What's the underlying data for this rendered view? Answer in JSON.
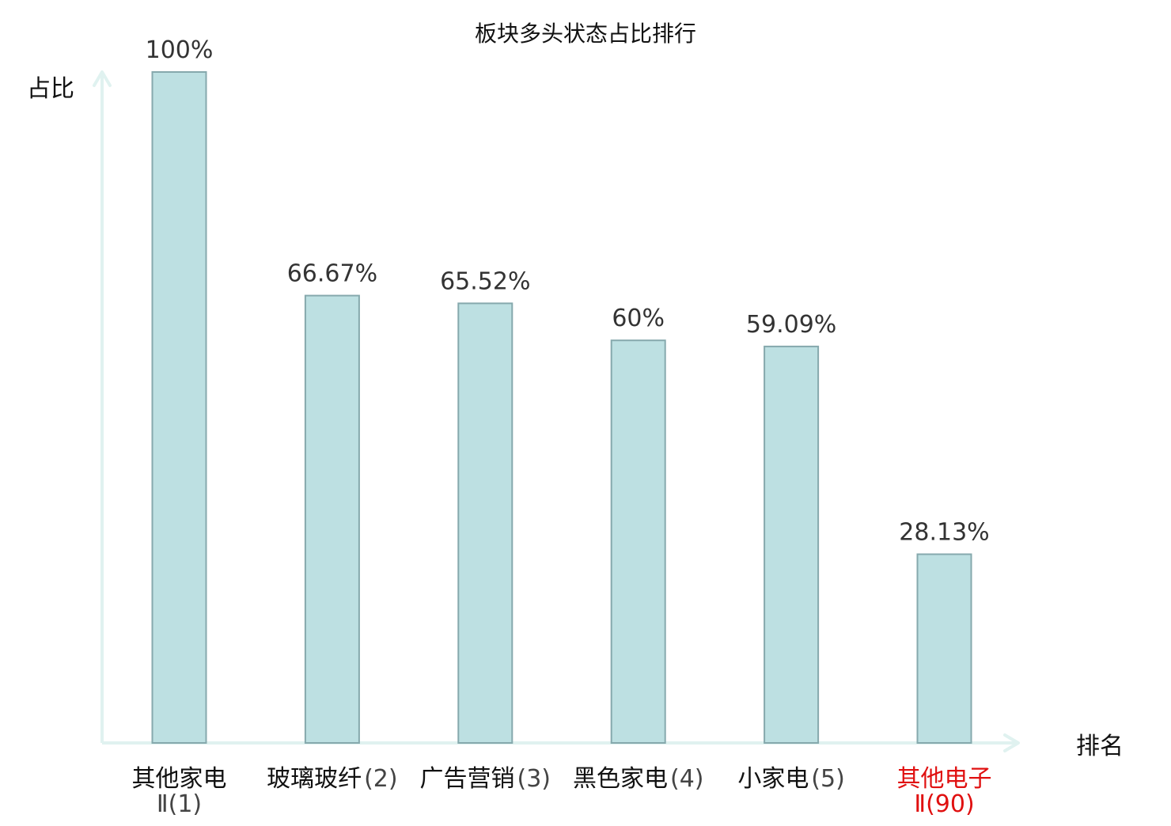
{
  "chart_data": {
    "type": "bar",
    "title": "板块多头状态占比排行",
    "ylabel": "占比",
    "xlabel": "排名",
    "ylim": [
      0,
      100
    ],
    "grid": false,
    "categories": [
      {
        "name": "其他家电",
        "rank": "Ⅱ(1)",
        "highlight": false
      },
      {
        "name": "玻璃玻纤",
        "rank": "(2)",
        "highlight": false
      },
      {
        "name": "广告营销",
        "rank": "(3)",
        "highlight": false
      },
      {
        "name": "黑色家电",
        "rank": "(4)",
        "highlight": false
      },
      {
        "name": "小家电",
        "rank": "(5)",
        "highlight": false
      },
      {
        "name": "其他电子",
        "rank": "Ⅱ(90)",
        "highlight": true
      }
    ],
    "values": [
      100,
      66.67,
      65.52,
      60,
      59.09,
      28.13
    ],
    "value_labels": [
      "100%",
      "66.67%",
      "65.52%",
      "60%",
      "59.09%",
      "28.13%"
    ]
  },
  "colors": {
    "bar_fill": "#bde0e2",
    "bar_stroke": "#86a9ad",
    "axis": "#e0f2f0",
    "text": "#111111",
    "secondary_text": "#444444",
    "highlight": "#e01010"
  }
}
